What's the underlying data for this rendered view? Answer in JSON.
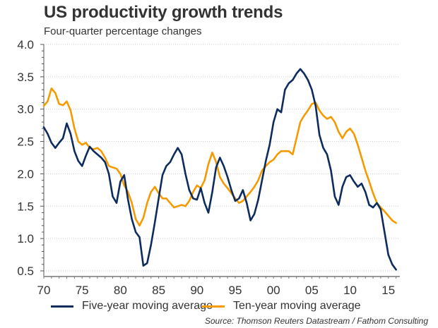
{
  "chart_data": {
    "type": "line",
    "title": "US productivity growth trends",
    "subtitle": "Four-quarter percentage changes",
    "xlabel": "",
    "ylabel": "",
    "xlim": [
      1970,
      2016.5
    ],
    "ylim": [
      0.5,
      4.0
    ],
    "yticks": [
      0.5,
      1.0,
      1.5,
      2.0,
      2.5,
      3.0,
      3.5,
      4.0
    ],
    "ytick_labels": [
      "0.5",
      "1.0",
      "1.5",
      "2.0",
      "2.5",
      "3.0",
      "3.5",
      "4.0"
    ],
    "xticks": [
      1970,
      1975,
      1980,
      1985,
      1990,
      1995,
      2000,
      2005,
      2010,
      2015
    ],
    "xtick_labels": [
      "70",
      "75",
      "80",
      "85",
      "90",
      "95",
      "00",
      "05",
      "10",
      "15"
    ],
    "grid": "horizontal-dotted",
    "legend_position": "bottom",
    "source": "Source: Thomson Reuters Datastream / Fathom Consulting",
    "series": [
      {
        "name": "Five-year moving average",
        "color": "#0d2c5e",
        "x": [
          1970.0,
          1970.5,
          1971.0,
          1971.5,
          1972.0,
          1972.5,
          1973.0,
          1973.5,
          1974.0,
          1974.5,
          1975.0,
          1975.5,
          1976.0,
          1976.5,
          1977.0,
          1977.5,
          1978.0,
          1978.5,
          1979.0,
          1979.5,
          1980.0,
          1980.5,
          1981.0,
          1981.5,
          1982.0,
          1982.5,
          1983.0,
          1983.5,
          1984.0,
          1984.5,
          1985.0,
          1985.5,
          1986.0,
          1986.5,
          1987.0,
          1987.5,
          1988.0,
          1988.5,
          1989.0,
          1989.5,
          1990.0,
          1990.5,
          1991.0,
          1991.5,
          1992.0,
          1992.5,
          1993.0,
          1993.5,
          1994.0,
          1994.5,
          1995.0,
          1995.5,
          1996.0,
          1996.5,
          1997.0,
          1997.5,
          1998.0,
          1998.5,
          1999.0,
          1999.5,
          2000.0,
          2000.5,
          2001.0,
          2001.5,
          2002.0,
          2002.5,
          2003.0,
          2003.5,
          2004.0,
          2004.5,
          2005.0,
          2005.5,
          2006.0,
          2006.5,
          2007.0,
          2007.5,
          2008.0,
          2008.5,
          2009.0,
          2009.5,
          2010.0,
          2010.5,
          2011.0,
          2011.5,
          2012.0,
          2012.5,
          2013.0,
          2013.5,
          2014.0,
          2014.5,
          2015.0,
          2015.5,
          2016.0
        ],
        "values": [
          2.72,
          2.62,
          2.48,
          2.4,
          2.48,
          2.55,
          2.78,
          2.62,
          2.35,
          2.2,
          2.12,
          2.28,
          2.42,
          2.35,
          2.3,
          2.25,
          2.18,
          2.0,
          1.65,
          1.55,
          1.88,
          1.98,
          1.6,
          1.3,
          1.1,
          1.02,
          0.58,
          0.62,
          0.9,
          1.25,
          1.62,
          1.98,
          2.12,
          2.18,
          2.3,
          2.4,
          2.3,
          2.0,
          1.75,
          1.62,
          1.6,
          1.78,
          1.55,
          1.4,
          1.72,
          2.1,
          2.25,
          2.12,
          1.95,
          1.75,
          1.58,
          1.62,
          1.75,
          1.55,
          1.28,
          1.38,
          1.6,
          1.9,
          2.2,
          2.45,
          2.8,
          3.0,
          2.95,
          3.3,
          3.4,
          3.45,
          3.55,
          3.62,
          3.55,
          3.45,
          3.3,
          3.05,
          2.6,
          2.4,
          2.3,
          2.05,
          1.65,
          1.52,
          1.8,
          1.95,
          1.98,
          1.88,
          1.8,
          1.85,
          1.72,
          1.52,
          1.48,
          1.55,
          1.45,
          1.1,
          0.75,
          0.6,
          0.52
        ]
      },
      {
        "name": "Ten-year moving average",
        "color": "#f59a00",
        "x": [
          1970.0,
          1970.5,
          1971.0,
          1971.5,
          1972.0,
          1972.5,
          1973.0,
          1973.5,
          1974.0,
          1974.5,
          1975.0,
          1975.5,
          1976.0,
          1976.5,
          1977.0,
          1977.5,
          1978.0,
          1978.5,
          1979.0,
          1979.5,
          1980.0,
          1980.5,
          1981.0,
          1981.5,
          1982.0,
          1982.5,
          1983.0,
          1983.5,
          1984.0,
          1984.5,
          1985.0,
          1985.5,
          1986.0,
          1986.5,
          1987.0,
          1987.5,
          1988.0,
          1988.5,
          1989.0,
          1989.5,
          1990.0,
          1990.5,
          1991.0,
          1991.5,
          1992.0,
          1992.5,
          1993.0,
          1993.5,
          1994.0,
          1994.5,
          1995.0,
          1995.5,
          1996.0,
          1996.5,
          1997.0,
          1997.5,
          1998.0,
          1998.5,
          1999.0,
          1999.5,
          2000.0,
          2000.5,
          2001.0,
          2001.5,
          2002.0,
          2002.5,
          2003.0,
          2003.5,
          2004.0,
          2004.5,
          2005.0,
          2005.5,
          2006.0,
          2006.5,
          2007.0,
          2007.5,
          2008.0,
          2008.5,
          2009.0,
          2009.5,
          2010.0,
          2010.5,
          2011.0,
          2011.5,
          2012.0,
          2012.5,
          2013.0,
          2013.5,
          2014.0,
          2014.5,
          2015.0,
          2015.5,
          2016.0
        ],
        "values": [
          3.05,
          3.12,
          3.32,
          3.25,
          3.08,
          3.06,
          3.12,
          2.98,
          2.7,
          2.5,
          2.45,
          2.48,
          2.4,
          2.38,
          2.4,
          2.35,
          2.25,
          2.12,
          2.1,
          2.08,
          2.0,
          1.82,
          1.72,
          1.55,
          1.3,
          1.2,
          1.32,
          1.55,
          1.72,
          1.8,
          1.7,
          1.62,
          1.62,
          1.55,
          1.48,
          1.5,
          1.52,
          1.5,
          1.58,
          1.72,
          1.82,
          1.78,
          1.9,
          2.15,
          2.33,
          2.18,
          1.95,
          1.85,
          1.78,
          1.7,
          1.62,
          1.55,
          1.58,
          1.65,
          1.72,
          1.8,
          1.9,
          2.05,
          2.12,
          2.18,
          2.22,
          2.3,
          2.35,
          2.35,
          2.35,
          2.3,
          2.55,
          2.8,
          2.9,
          2.98,
          3.08,
          3.1,
          2.98,
          2.9,
          2.85,
          2.88,
          2.8,
          2.65,
          2.55,
          2.65,
          2.7,
          2.62,
          2.45,
          2.25,
          2.05,
          1.88,
          1.7,
          1.55,
          1.48,
          1.42,
          1.35,
          1.28,
          1.24
        ]
      }
    ]
  }
}
